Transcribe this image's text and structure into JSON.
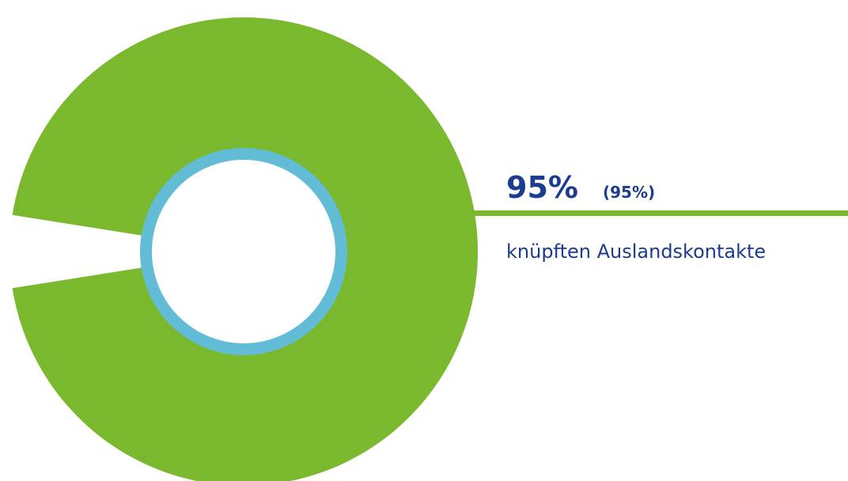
{
  "chart_data": {
    "type": "pie",
    "series": [
      {
        "name": "knüpften Auslandskontakte",
        "color": "#7ab82e",
        "values": [
          95
        ],
        "value_labels": [
          "95%"
        ]
      }
    ],
    "annotation": "(95%)",
    "ring_color": "#62bcd6",
    "text_color": "#1a3d8f"
  }
}
